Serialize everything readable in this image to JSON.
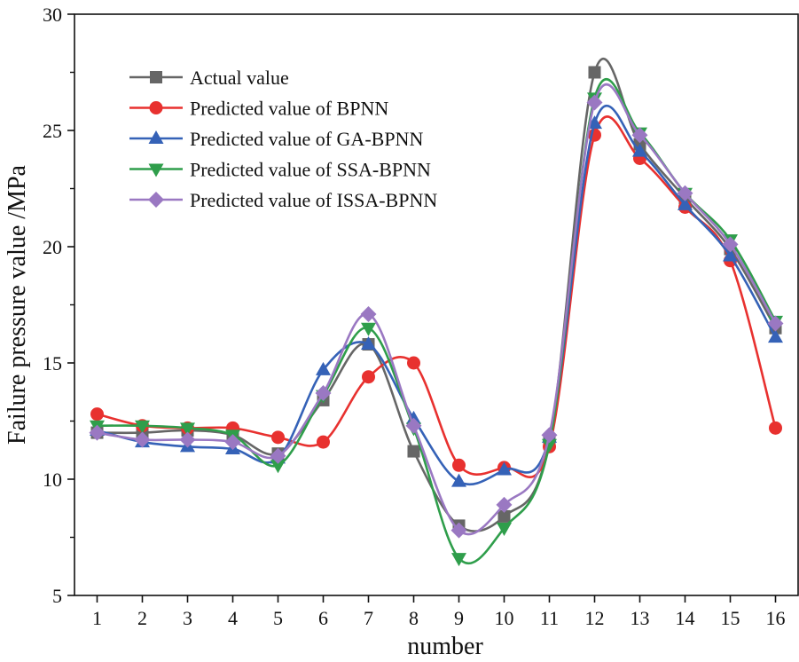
{
  "chart_data": {
    "type": "line",
    "title": "",
    "xlabel": "number",
    "ylabel": "Failure pressure value /MPa",
    "x": [
      1,
      2,
      3,
      4,
      5,
      6,
      7,
      8,
      9,
      10,
      11,
      12,
      13,
      14,
      15,
      16
    ],
    "xticks": [
      "1",
      "2",
      "3",
      "4",
      "5",
      "6",
      "7",
      "8",
      "9",
      "10",
      "11",
      "12",
      "13",
      "14",
      "15",
      "16"
    ],
    "xlim": [
      0.5,
      16.5
    ],
    "yticks": [
      "5",
      "10",
      "15",
      "20",
      "25",
      "30"
    ],
    "ylim": [
      5,
      30
    ],
    "grid": false,
    "legend_position": "top-left",
    "smooth": true,
    "series": [
      {
        "name": "Actual value",
        "color": "#666666",
        "marker": "square",
        "values": [
          12.0,
          12.0,
          12.1,
          11.9,
          11.1,
          13.4,
          15.8,
          11.2,
          8.0,
          8.4,
          11.6,
          27.5,
          24.4,
          22.1,
          19.9,
          16.5
        ]
      },
      {
        "name": "Predicted value of BPNN",
        "color": "#e8312f",
        "marker": "circle",
        "values": [
          12.8,
          12.3,
          12.2,
          12.2,
          11.8,
          11.6,
          14.4,
          15.0,
          10.6,
          10.5,
          11.4,
          24.8,
          23.8,
          21.7,
          19.4,
          12.2
        ]
      },
      {
        "name": "Predicted value of GA-BPNN",
        "color": "#3562b7",
        "marker": "triangle-up",
        "values": [
          12.1,
          11.6,
          11.4,
          11.3,
          10.9,
          14.7,
          15.8,
          12.6,
          9.9,
          10.4,
          11.8,
          25.3,
          24.1,
          21.8,
          19.6,
          16.1
        ]
      },
      {
        "name": "Predicted value of SSA-BPNN",
        "color": "#2f9e4b",
        "marker": "triangle-down",
        "values": [
          12.3,
          12.3,
          12.2,
          11.9,
          10.6,
          13.6,
          16.5,
          12.2,
          6.6,
          7.9,
          11.5,
          26.4,
          24.9,
          22.3,
          20.3,
          16.8
        ]
      },
      {
        "name": "Predicted value of ISSA-BPNN",
        "color": "#9a78c2",
        "marker": "diamond",
        "values": [
          12.0,
          11.7,
          11.7,
          11.6,
          11.0,
          13.7,
          17.1,
          12.3,
          7.8,
          8.9,
          11.9,
          26.2,
          24.8,
          22.3,
          20.1,
          16.7
        ]
      }
    ]
  }
}
